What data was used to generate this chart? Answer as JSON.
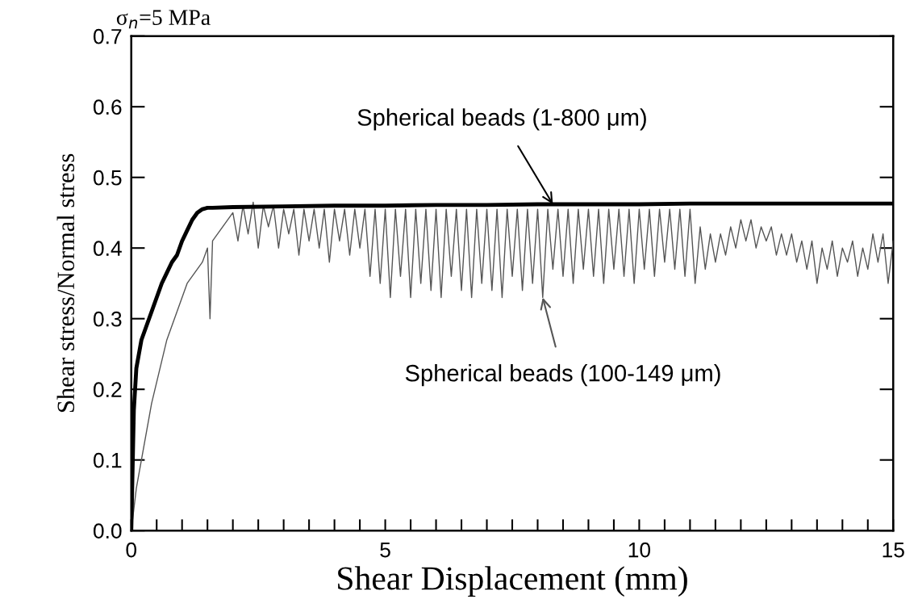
{
  "chart_data": {
    "type": "line",
    "title": "σ$_{n}$=5 MPa",
    "xlabel": "Shear Displacement (mm)",
    "ylabel": "Shear stress/Normal stress",
    "xlim": [
      0,
      15
    ],
    "ylim": [
      0,
      0.7
    ],
    "xticks": [
      0,
      {
        "value": 0.5,
        "label": null
      },
      {
        "value": 1,
        "label": null
      },
      {
        "value": 1.5,
        "label": null
      },
      {
        "value": 2,
        "label": null
      },
      {
        "value": 2.5,
        "label": null
      },
      {
        "value": 3,
        "label": null
      },
      {
        "value": 3.5,
        "label": null
      },
      {
        "value": 4,
        "label": null
      },
      {
        "value": 4.5,
        "label": null
      },
      5,
      {
        "value": 5.5,
        "label": null
      },
      {
        "value": 6,
        "label": null
      },
      {
        "value": 6.5,
        "label": null
      },
      {
        "value": 7,
        "label": null
      },
      {
        "value": 7.5,
        "label": null
      },
      {
        "value": 8,
        "label": null
      },
      {
        "value": 8.5,
        "label": null
      },
      {
        "value": 9,
        "label": null
      },
      {
        "value": 9.5,
        "label": null
      },
      10,
      {
        "value": 10.5,
        "label": null
      },
      {
        "value": 11,
        "label": null
      },
      {
        "value": 11.5,
        "label": null
      },
      {
        "value": 12,
        "label": null
      },
      {
        "value": 12.5,
        "label": null
      },
      {
        "value": 13,
        "label": null
      },
      {
        "value": 13.5,
        "label": null
      },
      {
        "value": 14,
        "label": null
      },
      {
        "value": 14.5,
        "label": null
      },
      15
    ],
    "yticks": [
      {
        "value": 0,
        "label": "0.0"
      },
      0.1,
      0.2,
      0.3,
      0.4,
      0.5,
      0.6,
      0.7
    ],
    "grid": false,
    "marker": "none",
    "line_style": "solid",
    "series": [
      {
        "color": "#000000",
        "x": [
          0,
          0.05,
          0.1,
          0.2,
          0.3,
          0.4,
          0.5,
          0.6,
          0.7,
          0.8,
          0.9,
          1.0,
          1.1,
          1.2,
          1.3,
          1.4,
          1.5,
          1.6,
          2,
          3,
          4,
          5,
          6,
          7,
          8,
          9,
          10,
          11,
          12,
          13,
          14,
          15
        ],
        "values": [
          0,
          0.17,
          0.23,
          0.27,
          0.29,
          0.31,
          0.33,
          0.35,
          0.365,
          0.38,
          0.39,
          0.41,
          0.425,
          0.44,
          0.45,
          0.455,
          0.457,
          0.457,
          0.458,
          0.459,
          0.46,
          0.46,
          0.461,
          0.461,
          0.462,
          0.462,
          0.462,
          0.463,
          0.463,
          0.463,
          0.463,
          0.463
        ]
      },
      {
        "color": "#555555",
        "x": [
          0,
          0.1,
          0.2,
          0.3,
          0.4,
          0.5,
          0.6,
          0.7,
          0.8,
          0.9,
          1.0,
          1.1,
          1.2,
          1.3,
          1.4,
          1.5,
          1.55,
          1.6,
          1.7,
          1.8,
          1.9,
          2.0,
          2.1,
          2.2,
          2.3,
          2.4,
          2.5,
          2.6,
          2.7,
          2.8,
          2.9,
          3.0,
          3.1,
          3.2,
          3.3,
          3.4,
          3.5,
          3.6,
          3.7,
          3.8,
          3.9,
          4.0,
          4.1,
          4.2,
          4.3,
          4.4,
          4.5,
          4.6,
          4.7,
          4.8,
          4.9,
          5.0,
          5.1,
          5.2,
          5.3,
          5.4,
          5.5,
          5.6,
          5.7,
          5.8,
          5.9,
          6.0,
          6.1,
          6.2,
          6.3,
          6.4,
          6.5,
          6.6,
          6.7,
          6.8,
          6.9,
          7.0,
          7.1,
          7.2,
          7.3,
          7.4,
          7.5,
          7.6,
          7.7,
          7.8,
          7.9,
          8.0,
          8.1,
          8.2,
          8.3,
          8.4,
          8.5,
          8.6,
          8.7,
          8.8,
          8.9,
          9.0,
          9.1,
          9.2,
          9.3,
          9.4,
          9.5,
          9.6,
          9.7,
          9.8,
          9.9,
          10.0,
          10.1,
          10.2,
          10.3,
          10.4,
          10.5,
          10.6,
          10.7,
          10.8,
          10.9,
          11.0,
          11.1,
          11.2,
          11.3,
          11.4,
          11.5,
          11.6,
          11.7,
          11.8,
          11.9,
          12.0,
          12.1,
          12.2,
          12.3,
          12.4,
          12.5,
          12.6,
          12.7,
          12.8,
          12.9,
          13.0,
          13.1,
          13.2,
          13.3,
          13.4,
          13.5,
          13.6,
          13.7,
          13.8,
          13.9,
          14.0,
          14.1,
          14.2,
          14.3,
          14.4,
          14.5,
          14.6,
          14.7,
          14.8,
          14.9,
          15.0
        ],
        "values": [
          0,
          0.06,
          0.1,
          0.14,
          0.18,
          0.21,
          0.24,
          0.27,
          0.29,
          0.31,
          0.33,
          0.35,
          0.36,
          0.37,
          0.38,
          0.4,
          0.3,
          0.41,
          0.42,
          0.43,
          0.44,
          0.45,
          0.41,
          0.46,
          0.42,
          0.465,
          0.4,
          0.46,
          0.43,
          0.46,
          0.4,
          0.455,
          0.42,
          0.455,
          0.39,
          0.455,
          0.41,
          0.455,
          0.4,
          0.455,
          0.38,
          0.455,
          0.41,
          0.455,
          0.39,
          0.455,
          0.4,
          0.455,
          0.36,
          0.455,
          0.35,
          0.455,
          0.33,
          0.455,
          0.36,
          0.455,
          0.33,
          0.455,
          0.35,
          0.455,
          0.34,
          0.455,
          0.33,
          0.455,
          0.36,
          0.455,
          0.34,
          0.455,
          0.33,
          0.455,
          0.35,
          0.455,
          0.34,
          0.455,
          0.33,
          0.455,
          0.36,
          0.455,
          0.34,
          0.455,
          0.35,
          0.455,
          0.33,
          0.455,
          0.37,
          0.455,
          0.36,
          0.455,
          0.35,
          0.455,
          0.37,
          0.455,
          0.36,
          0.455,
          0.35,
          0.455,
          0.37,
          0.455,
          0.36,
          0.455,
          0.35,
          0.455,
          0.37,
          0.455,
          0.36,
          0.455,
          0.38,
          0.455,
          0.37,
          0.455,
          0.36,
          0.455,
          0.35,
          0.43,
          0.37,
          0.42,
          0.38,
          0.42,
          0.39,
          0.43,
          0.4,
          0.44,
          0.41,
          0.44,
          0.4,
          0.43,
          0.41,
          0.43,
          0.39,
          0.42,
          0.39,
          0.42,
          0.38,
          0.41,
          0.37,
          0.41,
          0.35,
          0.4,
          0.37,
          0.41,
          0.36,
          0.4,
          0.38,
          0.41,
          0.36,
          0.4,
          0.37,
          0.42,
          0.38,
          0.42,
          0.35,
          0.41
        ]
      }
    ],
    "annotations": [
      {
        "text": "Spherical beads (1-800 μm)",
        "x": 8.3,
        "y": 0.462
      },
      {
        "text": "Spherical beads (100-149 μm)",
        "x": 8.1,
        "y": 0.33
      }
    ]
  }
}
